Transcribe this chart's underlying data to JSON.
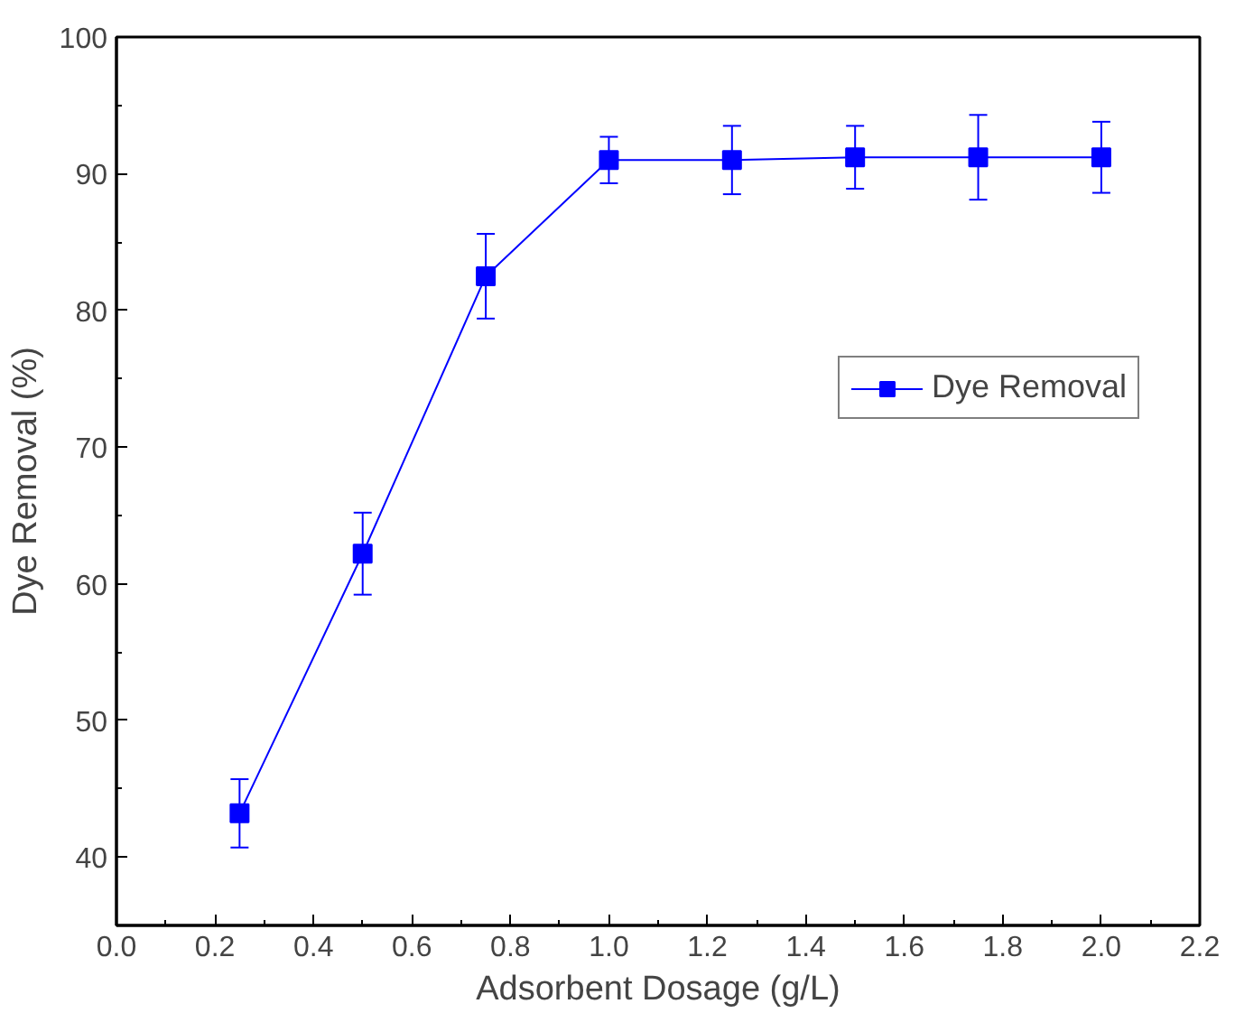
{
  "chart_data": {
    "type": "line",
    "xlabel": "Adsorbent Dosage (g/L)",
    "ylabel": "Dye Removal (%)",
    "x": [
      0.25,
      0.5,
      0.75,
      1.0,
      1.25,
      1.5,
      1.75,
      2.0
    ],
    "series": [
      {
        "name": "Dye Removal",
        "color": "#0000ff",
        "values": [
          43.2,
          62.2,
          82.5,
          91.0,
          91.0,
          91.2,
          91.2,
          91.2
        ],
        "errors": [
          2.5,
          3.0,
          3.1,
          1.7,
          2.5,
          2.3,
          3.1,
          2.6
        ]
      }
    ],
    "xlim": [
      0,
      2.2
    ],
    "xticks": [
      {
        "value": 0,
        "label": "0.0"
      },
      0.2,
      0.4,
      0.6,
      0.8,
      {
        "value": 1,
        "label": "1.0"
      },
      1.2,
      1.4,
      1.6,
      1.8,
      {
        "value": 2,
        "label": "2.0"
      },
      2.2
    ],
    "ylim": [
      35,
      100
    ],
    "yticks": [
      40,
      50,
      60,
      70,
      80,
      90,
      100
    ],
    "marker": "square",
    "line_style": "solid",
    "legend": "top right",
    "grid": false
  }
}
